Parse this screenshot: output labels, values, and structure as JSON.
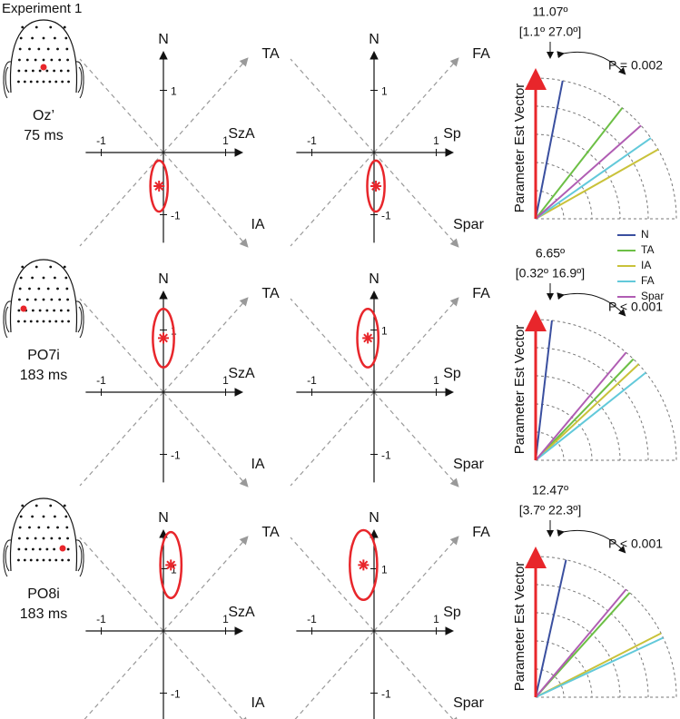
{
  "title": "Experiment 1",
  "polar_axis_label": "Parameter Est Vector",
  "legend": [
    {
      "name": "N",
      "color": "#3a4f9f"
    },
    {
      "name": "TA",
      "color": "#6cbf45"
    },
    {
      "name": "IA",
      "color": "#c9c23a"
    },
    {
      "name": "FA",
      "color": "#62c9da"
    },
    {
      "name": "Spar",
      "color": "#b05db3"
    }
  ],
  "rows": [
    {
      "electrode": "Oz’",
      "latency": "75 ms",
      "plots": [
        {
          "labels": [
            "N",
            "TA",
            "SzA",
            "IA"
          ],
          "xlim": [
            -1.25,
            1.25
          ],
          "ylim": [
            -1.45,
            1.6
          ],
          "xticks": [
            -1,
            1
          ],
          "yticks": [
            1,
            -1
          ],
          "estimate": {
            "x": -0.07,
            "y": -0.54
          },
          "ellipse": {
            "rx": 0.14,
            "ry": 0.41
          }
        },
        {
          "labels": [
            "N",
            "FA",
            "Sp",
            "Spar"
          ],
          "xlim": [
            -1.25,
            1.25
          ],
          "ylim": [
            -1.45,
            1.6
          ],
          "xticks": [
            -1,
            1
          ],
          "yticks": [
            1,
            -1
          ],
          "estimate": {
            "x": 0.03,
            "y": -0.54
          },
          "ellipse": {
            "rx": 0.14,
            "ry": 0.41
          }
        }
      ],
      "polar": {
        "angle_label": "11.07º",
        "ci_label": "[1.1º 27.0º]",
        "p_label": "P = 0.002",
        "angles": [
          11.07,
          38,
          60.5,
          55,
          48.5
        ]
      }
    },
    {
      "electrode": "PO7i",
      "latency": "183 ms",
      "plots": [
        {
          "labels": [
            "N",
            "TA",
            "SzA",
            "IA"
          ],
          "xlim": [
            -1.25,
            1.25
          ],
          "ylim": [
            -1.45,
            1.6
          ],
          "xticks": [
            -1,
            1
          ],
          "yticks": [
            1,
            -1
          ],
          "estimate": {
            "x": 0,
            "y": 0.87
          },
          "ellipse": {
            "rx": 0.17,
            "ry": 0.47
          }
        },
        {
          "labels": [
            "N",
            "FA",
            "Sp",
            "Spar"
          ],
          "xlim": [
            -1.25,
            1.25
          ],
          "ylim": [
            -1.45,
            1.6
          ],
          "xticks": [
            -1,
            1
          ],
          "yticks": [
            1,
            -1
          ],
          "estimate": {
            "x": -0.1,
            "y": 0.87
          },
          "ellipse": {
            "rx": 0.17,
            "ry": 0.47
          }
        }
      ],
      "polar": {
        "angle_label": "6.65º",
        "ci_label": "[0.32º 16.9º]",
        "p_label": "P < 0.001",
        "angles": [
          6.65,
          44,
          47,
          51.5,
          40
        ]
      }
    },
    {
      "electrode": "PO8i",
      "latency": "183 ms",
      "plots": [
        {
          "labels": [
            "N",
            "TA",
            "SzA",
            "IA"
          ],
          "xlim": [
            -1.25,
            1.25
          ],
          "ylim": [
            -1.45,
            1.6
          ],
          "xticks": [
            -1,
            1
          ],
          "yticks": [
            1,
            -1
          ],
          "estimate": {
            "x": 0.12,
            "y": 1.06
          },
          "ellipse": {
            "rx": 0.17,
            "ry": 0.53
          }
        },
        {
          "labels": [
            "N",
            "FA",
            "Sp",
            "Spar"
          ],
          "xlim": [
            -1.25,
            1.25
          ],
          "ylim": [
            -1.45,
            1.6
          ],
          "xticks": [
            -1,
            1
          ],
          "yticks": [
            1,
            -1
          ],
          "estimate": {
            "x": -0.17,
            "y": 1.06
          },
          "ellipse": {
            "rx": 0.22,
            "ry": 0.56
          }
        }
      ],
      "polar": {
        "angle_label": "12.47º",
        "ci_label": "[3.7º 22.3º]",
        "p_label": "P < 0.001",
        "angles": [
          12.47,
          42,
          63,
          65,
          40
        ]
      }
    }
  ]
}
